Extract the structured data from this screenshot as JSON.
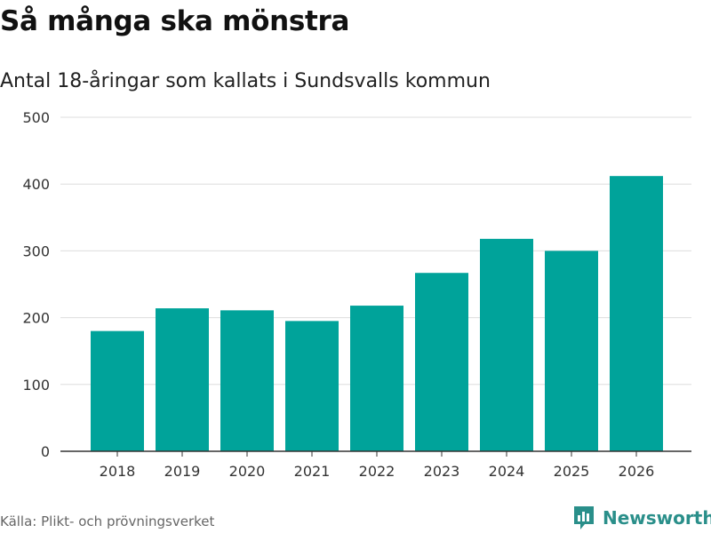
{
  "title": "Så många ska mönstra",
  "subtitle": "Antal 18-åringar som kallats i Sundsvalls kommun",
  "source": "Källa: Plikt- och prövningsverket",
  "brand": "Newsworthy",
  "colors": {
    "bar": "#00a39a",
    "grid": "#dddddd",
    "axis": "#333333",
    "brand": "#2a8f8a"
  },
  "chart_data": {
    "type": "bar",
    "title": "Så många ska mönstra",
    "subtitle": "Antal 18-åringar som kallats i Sundsvalls kommun",
    "xlabel": "",
    "ylabel": "",
    "categories": [
      "2018",
      "2019",
      "2020",
      "2021",
      "2022",
      "2023",
      "2024",
      "2025",
      "2026"
    ],
    "values": [
      180,
      214,
      211,
      195,
      218,
      267,
      318,
      300,
      412
    ],
    "ylim": [
      0,
      500
    ],
    "yticks": [
      0,
      100,
      200,
      300,
      400,
      500
    ],
    "grid": true
  }
}
